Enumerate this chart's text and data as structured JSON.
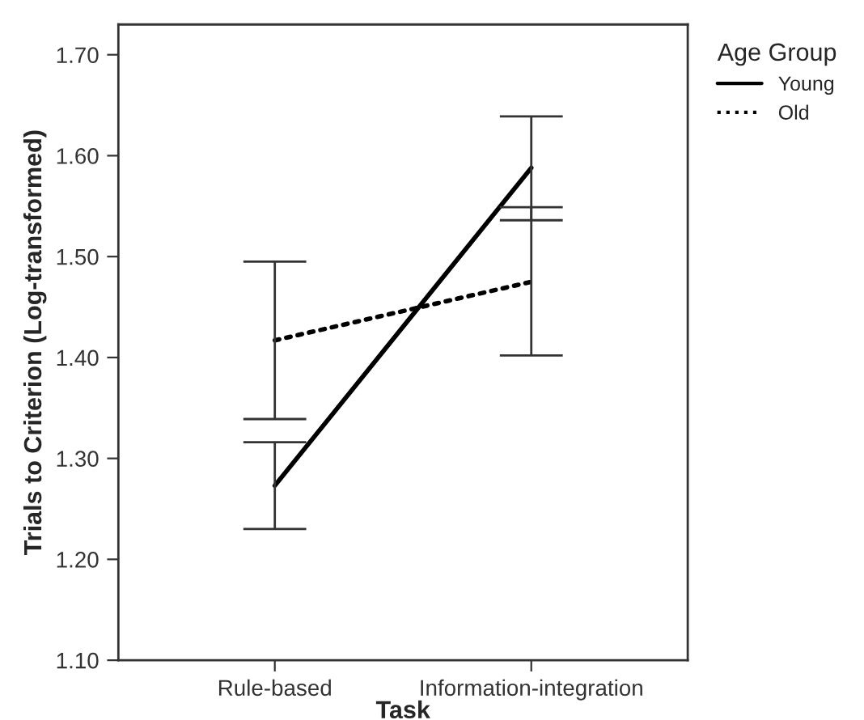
{
  "chart_data": {
    "type": "line",
    "xlabel": "Task",
    "ylabel": "Trials to Criterion (Log-transformed)",
    "legend_title": "Age Group",
    "categories": [
      "Rule-based",
      "Information-integration"
    ],
    "series": [
      {
        "name": "Young",
        "color": "#000000",
        "values": [
          1.273,
          1.588
        ],
        "errors": [
          [
            1.23,
            1.316
          ],
          [
            1.536,
            1.639
          ]
        ],
        "line_style": "solid"
      },
      {
        "name": "Old",
        "color": "#000000",
        "values": [
          1.417,
          1.475
        ],
        "errors": [
          [
            1.339,
            1.495
          ],
          [
            1.402,
            1.549
          ]
        ],
        "line_style": "dotted"
      }
    ],
    "ylim": [
      1.1,
      1.73
    ],
    "yticks": [
      {
        "value": 1.1,
        "label": "1.10"
      },
      {
        "value": 1.2,
        "label": "1.20"
      },
      {
        "value": 1.3,
        "label": "1.30"
      },
      {
        "value": 1.4,
        "label": "1.40"
      },
      {
        "value": 1.5,
        "label": "1.50"
      },
      {
        "value": 1.6,
        "label": "1.60"
      },
      {
        "value": 1.7,
        "label": "1.70"
      }
    ],
    "grid": false,
    "legend": "top right",
    "marker": "none"
  }
}
